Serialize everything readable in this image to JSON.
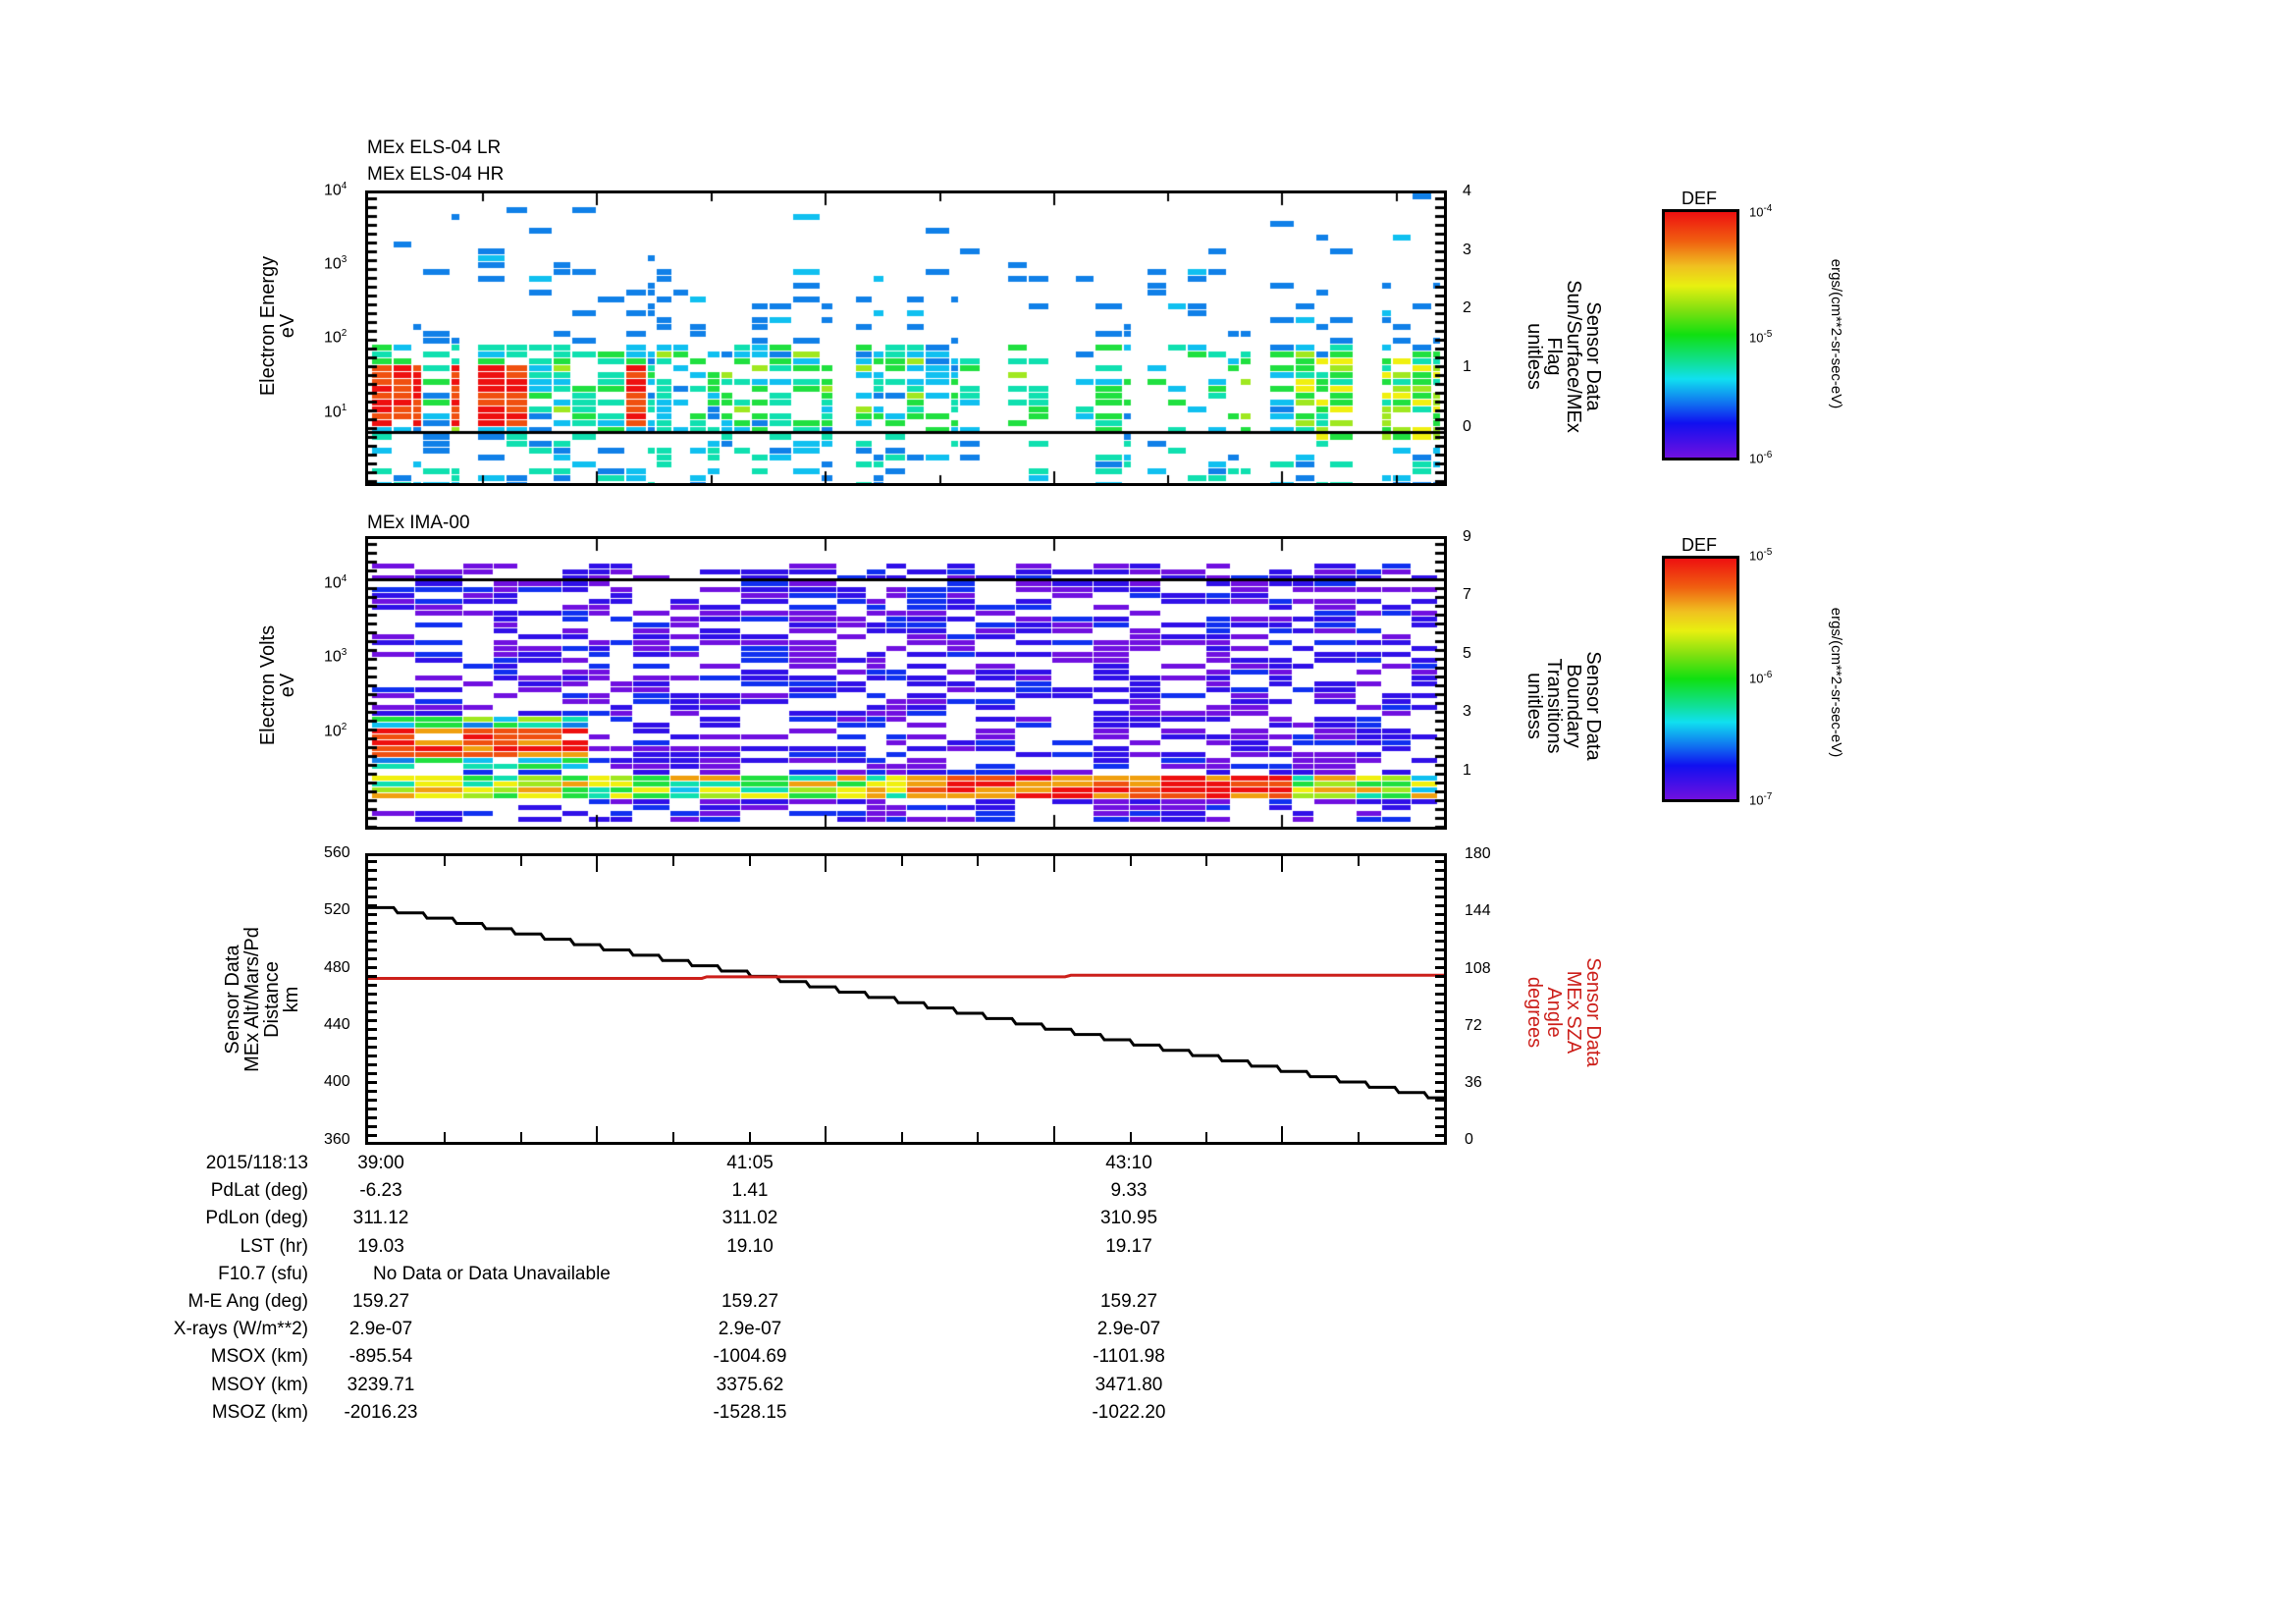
{
  "panels": {
    "els": {
      "titles": [
        "MEx ELS-04 LR",
        "MEx ELS-04 HR"
      ],
      "ylabel": [
        "Electron Energy",
        "eV"
      ],
      "yticks": [
        {
          "base": "10",
          "exp": "4"
        },
        {
          "base": "10",
          "exp": "3"
        },
        {
          "base": "10",
          "exp": "2"
        },
        {
          "base": "10",
          "exp": "1"
        }
      ],
      "right_ylabel": [
        "Sensor Data",
        "Sun/Surface/MEx",
        "Flag",
        "unitless"
      ],
      "right_yticks": [
        "4",
        "3",
        "2",
        "1",
        "0"
      ],
      "colorbar": {
        "title": "DEF",
        "top": {
          "base": "10",
          "exp": "-4"
        },
        "mid": {
          "base": "10",
          "exp": "-5"
        },
        "bottom": {
          "base": "10",
          "exp": "-6"
        },
        "units": "ergs/(cm**2-sr-sec-eV)"
      }
    },
    "ima": {
      "title": "MEx IMA-00",
      "ylabel": [
        "Electron Volts",
        "eV"
      ],
      "yticks": [
        {
          "base": "10",
          "exp": "4"
        },
        {
          "base": "10",
          "exp": "3"
        },
        {
          "base": "10",
          "exp": "2"
        }
      ],
      "right_ylabel": [
        "Sensor Data",
        "Boundary",
        "Transitions",
        "unitless"
      ],
      "right_yticks": [
        "9",
        "7",
        "5",
        "3",
        "1"
      ],
      "colorbar": {
        "title": "DEF",
        "top": {
          "base": "10",
          "exp": "-5"
        },
        "mid": {
          "base": "10",
          "exp": "-6"
        },
        "bottom": {
          "base": "10",
          "exp": "-7"
        },
        "units": "ergs/(cm**2-sr-sec-eV)"
      }
    },
    "alt": {
      "ylabel": [
        "Sensor Data",
        "MEx Alt/Mars/Pd",
        "Distance",
        "km"
      ],
      "yticks": [
        "560",
        "520",
        "480",
        "440",
        "400",
        "360"
      ],
      "right_ylabel": [
        "Sensor Data",
        "MEx SZA",
        "Angle",
        "degrees"
      ],
      "right_yticks": [
        "180",
        "144",
        "108",
        "72",
        "36",
        "0"
      ],
      "right_color": "#cc1f1a"
    }
  },
  "ephemeris": {
    "rows": [
      {
        "label": "2015/118:13",
        "values": [
          "39:00",
          "41:05",
          "43:10"
        ]
      },
      {
        "label": "PdLat (deg)",
        "values": [
          "-6.23",
          "1.41",
          "9.33"
        ]
      },
      {
        "label": "PdLon (deg)",
        "values": [
          "311.12",
          "311.02",
          "310.95"
        ]
      },
      {
        "label": "LST (hr)",
        "values": [
          "19.03",
          "19.10",
          "19.17"
        ]
      },
      {
        "label": "F10.7 (sfu)",
        "values": [
          "No Data or Data Unavailable",
          "",
          ""
        ]
      },
      {
        "label": "M-E Ang (deg)",
        "values": [
          "159.27",
          "159.27",
          "159.27"
        ]
      },
      {
        "label": "X-rays (W/m**2)",
        "values": [
          "2.9e-07",
          "2.9e-07",
          "2.9e-07"
        ]
      },
      {
        "label": "MSOX (km)",
        "values": [
          "-895.54",
          "-1004.69",
          "-1101.98"
        ]
      },
      {
        "label": "MSOY (km)",
        "values": [
          "3239.71",
          "3375.62",
          "3471.80"
        ]
      },
      {
        "label": "MSOZ (km)",
        "values": [
          "-2016.23",
          "-1528.15",
          "-1022.20"
        ]
      }
    ]
  },
  "chart_data": [
    {
      "type": "heatmap",
      "title": "MEx ELS-04 LR / MEx ELS-04 HR",
      "xlabel": "2015/118:13 (UT)",
      "ylabel": "Electron Energy (eV)",
      "yscale": "log",
      "ylim": [
        1,
        10000
      ],
      "xticks": [
        "39:00",
        "41:05",
        "43:10"
      ],
      "colorbar": {
        "label": "DEF ergs/(cm**2-sr-sec-eV)",
        "range": [
          1e-06,
          0.0001
        ]
      },
      "overlay": {
        "name": "Sensor Data Sun/Surface/MEx Flag",
        "ylim": [
          -1,
          4
        ],
        "value": 0
      },
      "notes": "High flux (red) at 5-50 eV during 39:00-39:50, then green/blue scattered counts"
    },
    {
      "type": "heatmap",
      "title": "MEx IMA-00",
      "ylabel": "Electron Volts (eV)",
      "yscale": "log",
      "ylim": [
        5,
        40000
      ],
      "xticks": [
        "39:00",
        "41:05",
        "43:10"
      ],
      "colorbar": {
        "label": "DEF ergs/(cm**2-sr-sec-eV)",
        "range": [
          1e-07,
          1e-05
        ]
      },
      "overlay": {
        "name": "Sensor Data Boundary Transitions",
        "ylim": [
          -1,
          9
        ],
        "value": 7
      },
      "notes": "Background purple/blue; intense band near 10-20 eV, red around 41:30-43:50"
    },
    {
      "type": "line",
      "xticks": [
        "39:00",
        "41:05",
        "43:10"
      ],
      "series": [
        {
          "name": "MEx Alt/Mars/Pd Distance (km)",
          "axis": "left",
          "ylim": [
            360,
            560
          ],
          "x": [
            "39:00",
            "39:30",
            "40:00",
            "40:30",
            "41:05",
            "41:30",
            "42:00",
            "42:30",
            "43:10",
            "43:30",
            "44:00",
            "44:30"
          ],
          "values": [
            524,
            510,
            490,
            476,
            462,
            448,
            435,
            420,
            405,
            392,
            378,
            364
          ]
        },
        {
          "name": "MEx SZA Angle (degrees)",
          "axis": "right",
          "ylim": [
            0,
            180
          ],
          "color": "#cc1f1a",
          "x": [
            "39:00",
            "40:10",
            "42:40",
            "44:40"
          ],
          "values": [
            103,
            104,
            105,
            105
          ]
        }
      ]
    }
  ]
}
